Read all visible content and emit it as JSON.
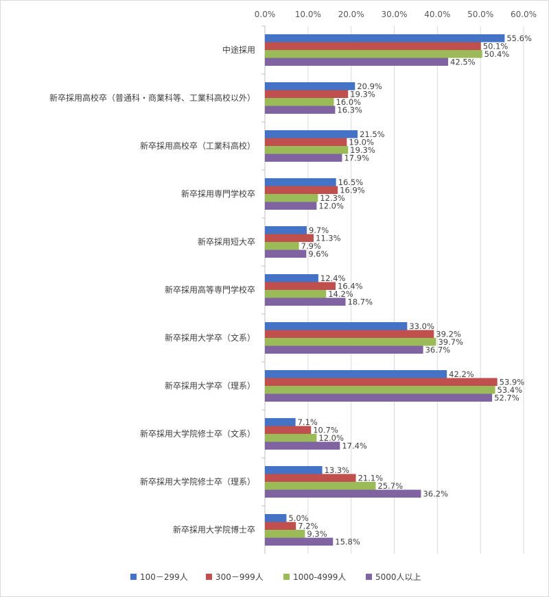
{
  "chart_data": {
    "type": "bar",
    "orientation": "horizontal",
    "xlim": [
      0,
      60
    ],
    "xticks": [
      "0.0%",
      "10.0%",
      "20.0%",
      "30.0%",
      "40.0%",
      "50.0%",
      "60.0%"
    ],
    "xtick_values": [
      0,
      10,
      20,
      30,
      40,
      50,
      60
    ],
    "grid": true,
    "legend_position": "bottom",
    "categories": [
      "中途採用",
      "新卒採用高校卒（普通科・商業科等、工業科高校以外）",
      "新卒採用高校卒（工業科高校）",
      "新卒採用専門学校卒",
      "新卒採用短大卒",
      "新卒採用高等専門学校卒",
      "新卒採用大学卒（文系）",
      "新卒採用大学卒（理系）",
      "新卒採用大学院修士卒（文系）",
      "新卒採用大学院修士卒（理系）",
      "新卒採用大学院博士卒"
    ],
    "series": [
      {
        "name": "100－299人",
        "color": "#4472c4",
        "values": [
          55.6,
          20.9,
          21.5,
          16.5,
          9.7,
          12.4,
          33.0,
          42.2,
          7.1,
          13.3,
          5.0
        ],
        "labels": [
          "55.6%",
          "20.9%",
          "21.5%",
          "16.5%",
          "9.7%",
          "12.4%",
          "33.0%",
          "42.2%",
          "7.1%",
          "13.3%",
          "5.0%"
        ]
      },
      {
        "name": "300－999人",
        "color": "#c0504d",
        "values": [
          50.1,
          19.3,
          19.0,
          16.9,
          11.3,
          16.4,
          39.2,
          53.9,
          10.7,
          21.1,
          7.2
        ],
        "labels": [
          "50.1%",
          "19.3%",
          "19.0%",
          "16.9%",
          "11.3%",
          "16.4%",
          "39.2%",
          "53.9%",
          "10.7%",
          "21.1%",
          "7.2%"
        ]
      },
      {
        "name": "1000-4999人",
        "color": "#9bbb59",
        "values": [
          50.4,
          16.0,
          19.3,
          12.3,
          7.9,
          14.2,
          39.7,
          53.4,
          12.0,
          25.7,
          9.3
        ],
        "labels": [
          "50.4%",
          "16.0%",
          "19.3%",
          "12.3%",
          "7.9%",
          "14.2%",
          "39.7%",
          "53.4%",
          "12.0%",
          "25.7%",
          "9.3%"
        ]
      },
      {
        "name": "5000人以上",
        "color": "#8064a2",
        "values": [
          42.5,
          16.3,
          17.9,
          12.0,
          9.6,
          18.7,
          36.7,
          52.7,
          17.4,
          36.2,
          15.8
        ],
        "labels": [
          "42.5%",
          "16.3%",
          "17.9%",
          "12.0%",
          "9.6%",
          "18.7%",
          "36.7%",
          "52.7%",
          "17.4%",
          "36.2%",
          "15.8%"
        ]
      }
    ]
  }
}
